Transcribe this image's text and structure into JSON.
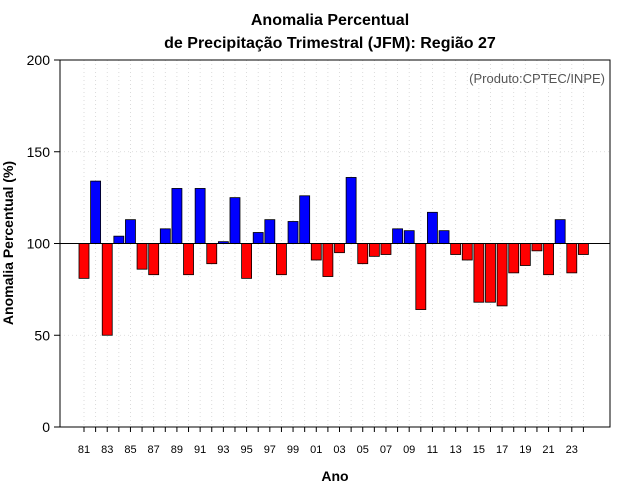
{
  "colors": {
    "above": "#0000ff",
    "below": "#ff0000",
    "bar_stroke": "#000000",
    "grid": "#d3d3d3",
    "background": "#ffffff"
  },
  "chart_data": {
    "type": "bar",
    "title_line1": "Anomalia Percentual",
    "title_line2": "de Precipitação Trimestral (JFM): Região 27",
    "xlabel": "Ano",
    "ylabel": "Anomalia Percentual (%)",
    "credit": "(Produto:CPTEC/INPE)",
    "ylim": [
      0,
      200
    ],
    "yticks": [
      0,
      50,
      100,
      150,
      200
    ],
    "baseline": 100,
    "grid": true,
    "categories": [
      "81",
      "82",
      "83",
      "84",
      "85",
      "86",
      "87",
      "88",
      "89",
      "90",
      "91",
      "92",
      "93",
      "94",
      "95",
      "96",
      "97",
      "98",
      "99",
      "00",
      "01",
      "02",
      "03",
      "04",
      "05",
      "06",
      "07",
      "08",
      "09",
      "10",
      "11",
      "12",
      "13",
      "14",
      "15",
      "16",
      "17",
      "18",
      "19",
      "20",
      "21",
      "22",
      "23",
      "24"
    ],
    "values": [
      81,
      134,
      50,
      104,
      113,
      86,
      83,
      108,
      130,
      83,
      130,
      89,
      101,
      125,
      81,
      106,
      113,
      83,
      112,
      126,
      91,
      82,
      95,
      136,
      89,
      93,
      94,
      108,
      107,
      64,
      117,
      107,
      94,
      91,
      68,
      68,
      66,
      84,
      88,
      96,
      83,
      113,
      84,
      94
    ],
    "xtick_labels": [
      "81",
      "83",
      "85",
      "87",
      "89",
      "91",
      "93",
      "95",
      "97",
      "99",
      "01",
      "03",
      "05",
      "07",
      "09",
      "11",
      "13",
      "15",
      "17",
      "19",
      "21",
      "23"
    ]
  }
}
